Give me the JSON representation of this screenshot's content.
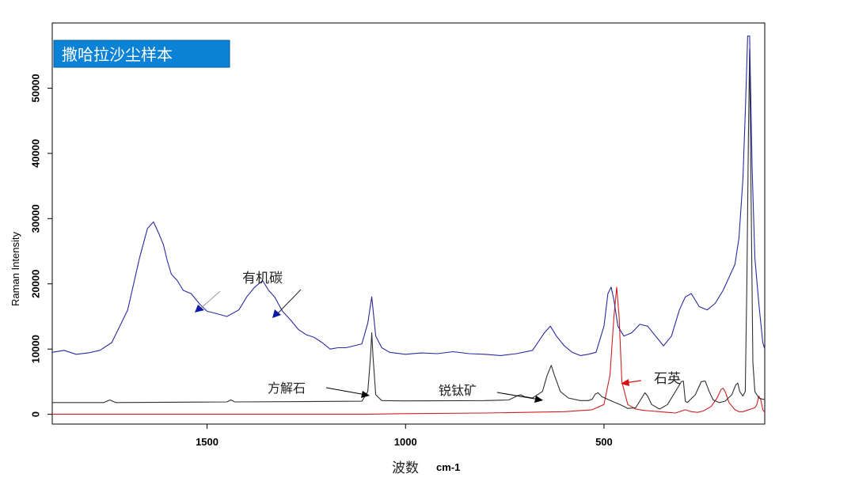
{
  "chart_data": {
    "type": "line",
    "title": "撒哈拉沙尘样本",
    "xlabel": "波数",
    "xlabel_unit": "cm-1",
    "ylabel": "Raman Intensity",
    "x_direction": "reversed",
    "xlim": [
      1890,
      95
    ],
    "ylim": [
      -1500,
      60000
    ],
    "x_ticks": [
      1500,
      1000,
      500
    ],
    "x_tick_labels": [
      "1500",
      "1000",
      "500"
    ],
    "y_ticks": [
      0,
      10000,
      20000,
      30000,
      40000,
      50000
    ],
    "y_tick_labels": [
      "0",
      "10000",
      "20000",
      "30000",
      "40000",
      "50000"
    ],
    "grid": false,
    "legend": "none",
    "colors": {
      "sample": "#2a2aa0",
      "reference": "#303030",
      "quartz": "#cc2020",
      "axis": "#000000",
      "title_box": "#0b82d6",
      "arrow_blue": "#0d1aa6",
      "arrow_red": "#dd1111"
    },
    "series": [
      {
        "color": "#2a2aa0",
        "x": [
          1890,
          1860,
          1830,
          1800,
          1770,
          1740,
          1700,
          1670,
          1650,
          1635,
          1620,
          1610,
          1600,
          1590,
          1575,
          1560,
          1540,
          1520,
          1500,
          1480,
          1450,
          1420,
          1400,
          1380,
          1360,
          1345,
          1330,
          1310,
          1290,
          1270,
          1250,
          1230,
          1210,
          1190,
          1170,
          1150,
          1130,
          1110,
          1095,
          1085,
          1075,
          1060,
          1040,
          1000,
          960,
          920,
          880,
          840,
          800,
          760,
          720,
          680,
          650,
          635,
          620,
          600,
          580,
          560,
          540,
          520,
          500,
          490,
          482,
          475,
          465,
          450,
          430,
          410,
          390,
          370,
          350,
          330,
          310,
          295,
          280,
          260,
          240,
          220,
          200,
          185,
          170,
          160,
          150,
          143,
          138,
          133,
          127,
          120,
          110,
          100,
          95
        ],
        "y": [
          9500,
          9800,
          9200,
          9400,
          9800,
          11000,
          16000,
          24000,
          28500,
          29500,
          27500,
          26000,
          23500,
          21500,
          20500,
          19000,
          18500,
          17000,
          15800,
          15500,
          15000,
          16000,
          18000,
          19500,
          20500,
          19000,
          18000,
          15800,
          14500,
          13000,
          12200,
          11800,
          11000,
          10000,
          10200,
          10200,
          10500,
          10800,
          14000,
          18000,
          12000,
          10200,
          9500,
          9200,
          9400,
          9300,
          9600,
          9300,
          9200,
          9000,
          9300,
          9800,
          12500,
          13500,
          12000,
          10500,
          9500,
          9000,
          9200,
          9500,
          13500,
          18500,
          19500,
          17500,
          13500,
          12000,
          12500,
          13800,
          13500,
          12000,
          10500,
          12000,
          16000,
          18000,
          18500,
          16500,
          16000,
          17000,
          19000,
          21000,
          23000,
          27000,
          36000,
          48000,
          58000,
          58000,
          38000,
          24000,
          17000,
          11000,
          10000
        ]
      },
      {
        "color": "#303030",
        "x": [
          1890,
          1760,
          1745,
          1730,
          1450,
          1440,
          1430,
          1110,
          1095,
          1088,
          1085,
          1082,
          1075,
          1060,
          1000,
          800,
          740,
          720,
          710,
          700,
          680,
          655,
          643,
          633,
          625,
          610,
          590,
          560,
          540,
          530,
          522,
          515,
          505,
          480,
          460,
          440,
          420,
          405,
          397,
          390,
          380,
          360,
          340,
          320,
          305,
          300,
          295,
          290,
          270,
          255,
          245,
          235,
          225,
          210,
          195,
          178,
          168,
          163,
          158,
          150,
          144,
          140,
          136,
          133,
          130,
          125,
          120,
          110,
          100,
          95
        ],
        "y": [
          1800,
          1800,
          2200,
          1800,
          1900,
          2200,
          1900,
          2000,
          3500,
          9000,
          12500,
          9000,
          3000,
          2100,
          2050,
          2100,
          2200,
          2800,
          3000,
          2700,
          2500,
          3500,
          6000,
          7500,
          6000,
          3500,
          2500,
          2100,
          2100,
          2300,
          3100,
          3300,
          2700,
          2000,
          1500,
          900,
          1000,
          2500,
          3300,
          2800,
          1500,
          800,
          1500,
          3500,
          5000,
          5100,
          2000,
          1800,
          3000,
          5000,
          5100,
          3500,
          2200,
          1800,
          2000,
          3000,
          4500,
          4800,
          3500,
          2800,
          3500,
          20000,
          43000,
          56000,
          36000,
          8000,
          3500,
          2500,
          2300,
          2300
        ]
      },
      {
        "color": "#cc2020",
        "x": [
          1890,
          1600,
          1300,
          1100,
          1000,
          800,
          700,
          600,
          530,
          500,
          485,
          475,
          468,
          462,
          455,
          440,
          420,
          400,
          380,
          360,
          340,
          320,
          305,
          295,
          280,
          265,
          250,
          230,
          215,
          205,
          200,
          195,
          185,
          170,
          160,
          150,
          140,
          130,
          120,
          115,
          110,
          105,
          100,
          95
        ],
        "y": [
          0,
          0,
          0,
          0,
          100,
          200,
          300,
          400,
          700,
          1500,
          6000,
          15000,
          19500,
          15000,
          5000,
          1500,
          800,
          600,
          500,
          400,
          300,
          200,
          500,
          700,
          400,
          300,
          500,
          1200,
          2500,
          3800,
          4000,
          3500,
          1800,
          700,
          400,
          400,
          600,
          800,
          1000,
          1500,
          2800,
          2200,
          700,
          300
        ]
      }
    ],
    "annotations": [
      {
        "text": "有机碳",
        "x": 1345,
        "y": 27000
      },
      {
        "text": "方解石",
        "x": 1275,
        "y": 6000
      },
      {
        "text": "锐钛矿",
        "x": 875,
        "y": 5000
      },
      {
        "text": "石英",
        "x": 370,
        "y": 7000
      }
    ]
  }
}
